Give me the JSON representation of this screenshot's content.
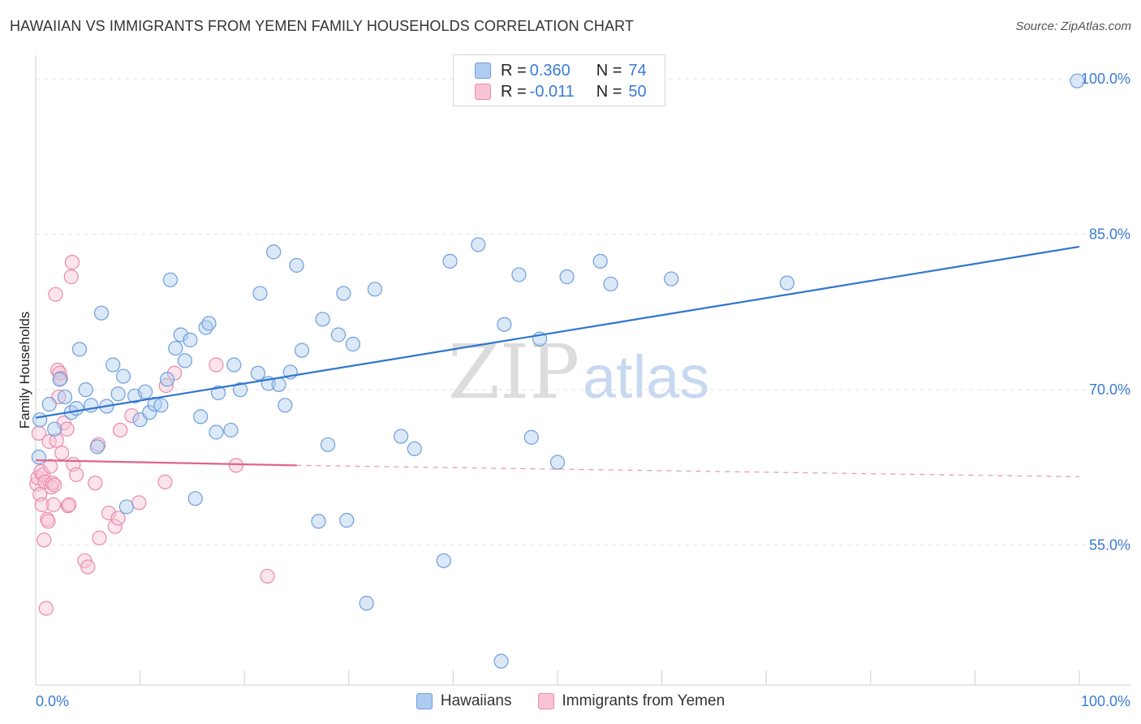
{
  "title": "HAWAIIAN VS IMMIGRANTS FROM YEMEN FAMILY HOUSEHOLDS CORRELATION CHART",
  "source": "Source: ZipAtlas.com",
  "watermark": {
    "part1": "ZIP",
    "part2": "atlas"
  },
  "legend_top": [
    {
      "r_label": "R =",
      "r_value": "0.360",
      "n_label": "N =",
      "n_value": "74",
      "color": "#aecbf0",
      "border": "#6f9fdc"
    },
    {
      "r_label": "R =",
      "r_value": "-0.011",
      "n_label": "N =",
      "n_value": "50",
      "color": "#f8c4d4",
      "border": "#e98aa9"
    }
  ],
  "legend_bottom": [
    {
      "label": "Hawaiians",
      "color": "#aecbf0",
      "border": "#6f9fdc"
    },
    {
      "label": "Immigrants from Yemen",
      "color": "#f8c4d4",
      "border": "#e98aa9"
    }
  ],
  "chart_data": {
    "type": "scatter",
    "title": "HAWAIIAN VS IMMIGRANTS FROM YEMEN FAMILY HOUSEHOLDS CORRELATION CHART",
    "xlabel": "",
    "ylabel": "Family Households",
    "xlim": [
      0,
      100
    ],
    "ylim": [
      41.5,
      101.5
    ],
    "x_tick_labels": [
      {
        "value": 0,
        "label": "0.0%"
      },
      {
        "value": 100,
        "label": "100.0%"
      }
    ],
    "y_tick_labels": [
      {
        "value": 55,
        "label": "55.0%"
      },
      {
        "value": 70,
        "label": "70.0%"
      },
      {
        "value": 85,
        "label": "85.0%"
      },
      {
        "value": 100,
        "label": "100.0%"
      }
    ],
    "grid": "horizontal dashed at y tick values",
    "legend_position": "top-center",
    "colors": {
      "hawaiians": "#6f9fdc",
      "hawaiians_line": "#2f74d0",
      "yemen": "#e98aa9",
      "yemen_line": "#e0648d"
    },
    "series": [
      {
        "name": "Hawaiians",
        "r": 0.36,
        "n": 74,
        "trend": {
          "x": [
            0,
            100
          ],
          "y": [
            67.3,
            83.8
          ],
          "style": "solid"
        },
        "points": [
          [
            0.3,
            63.5
          ],
          [
            0.4,
            67.1
          ],
          [
            1.3,
            68.6
          ],
          [
            1.8,
            66.2
          ],
          [
            2.3,
            71.0
          ],
          [
            2.8,
            69.3
          ],
          [
            3.4,
            67.8
          ],
          [
            3.9,
            68.2
          ],
          [
            4.2,
            73.9
          ],
          [
            4.8,
            70.0
          ],
          [
            5.3,
            68.5
          ],
          [
            5.9,
            64.5
          ],
          [
            6.3,
            77.4
          ],
          [
            6.8,
            68.4
          ],
          [
            7.4,
            72.4
          ],
          [
            7.9,
            69.6
          ],
          [
            8.4,
            71.3
          ],
          [
            8.7,
            58.7
          ],
          [
            9.5,
            69.4
          ],
          [
            10.0,
            67.1
          ],
          [
            10.5,
            69.8
          ],
          [
            10.9,
            67.8
          ],
          [
            11.4,
            68.6
          ],
          [
            12.0,
            68.5
          ],
          [
            12.6,
            71.0
          ],
          [
            12.9,
            80.6
          ],
          [
            13.4,
            74.0
          ],
          [
            13.9,
            75.3
          ],
          [
            14.3,
            72.8
          ],
          [
            14.8,
            74.8
          ],
          [
            15.3,
            59.5
          ],
          [
            15.8,
            67.4
          ],
          [
            16.3,
            76.0
          ],
          [
            16.6,
            76.4
          ],
          [
            17.3,
            65.9
          ],
          [
            17.5,
            69.7
          ],
          [
            18.7,
            66.1
          ],
          [
            19.0,
            72.4
          ],
          [
            19.6,
            70.0
          ],
          [
            21.3,
            71.6
          ],
          [
            21.5,
            79.3
          ],
          [
            22.3,
            70.6
          ],
          [
            22.8,
            83.3
          ],
          [
            23.3,
            70.5
          ],
          [
            23.9,
            68.5
          ],
          [
            24.4,
            71.7
          ],
          [
            25.0,
            82.0
          ],
          [
            25.5,
            73.8
          ],
          [
            27.1,
            57.3
          ],
          [
            27.5,
            76.8
          ],
          [
            28.0,
            64.7
          ],
          [
            29.0,
            75.3
          ],
          [
            29.5,
            79.3
          ],
          [
            29.8,
            57.4
          ],
          [
            30.4,
            74.4
          ],
          [
            31.7,
            49.4
          ],
          [
            32.5,
            79.7
          ],
          [
            35.0,
            65.5
          ],
          [
            36.3,
            64.3
          ],
          [
            39.1,
            53.5
          ],
          [
            39.7,
            82.4
          ],
          [
            42.4,
            84.0
          ],
          [
            44.6,
            43.8
          ],
          [
            44.9,
            76.3
          ],
          [
            46.3,
            81.1
          ],
          [
            47.5,
            65.4
          ],
          [
            48.3,
            74.9
          ],
          [
            50.0,
            63.0
          ],
          [
            50.9,
            80.9
          ],
          [
            54.1,
            82.4
          ],
          [
            55.1,
            80.2
          ],
          [
            60.9,
            80.7
          ],
          [
            72.0,
            80.3
          ],
          [
            99.8,
            99.8
          ]
        ]
      },
      {
        "name": "Immigrants from Yemen",
        "r": -0.011,
        "n": 50,
        "trend": {
          "x": [
            0,
            25,
            100
          ],
          "y": [
            63.2,
            62.7,
            61.6
          ],
          "style": "solid to 25, dashed after"
        },
        "points": [
          [
            0.1,
            60.9
          ],
          [
            0.2,
            61.5
          ],
          [
            0.3,
            65.8
          ],
          [
            0.4,
            59.9
          ],
          [
            0.5,
            62.1
          ],
          [
            0.6,
            58.9
          ],
          [
            0.7,
            61.8
          ],
          [
            0.8,
            55.5
          ],
          [
            0.9,
            61.1
          ],
          [
            1.0,
            48.9
          ],
          [
            1.1,
            57.5
          ],
          [
            1.2,
            57.3
          ],
          [
            1.3,
            65.0
          ],
          [
            1.4,
            62.6
          ],
          [
            1.5,
            60.6
          ],
          [
            1.6,
            61.0
          ],
          [
            1.7,
            58.9
          ],
          [
            1.8,
            60.8
          ],
          [
            1.9,
            79.2
          ],
          [
            2.0,
            65.1
          ],
          [
            2.1,
            71.9
          ],
          [
            2.2,
            69.3
          ],
          [
            2.3,
            71.6
          ],
          [
            2.4,
            71.1
          ],
          [
            2.5,
            63.9
          ],
          [
            2.7,
            66.8
          ],
          [
            3.0,
            66.2
          ],
          [
            3.1,
            58.8
          ],
          [
            3.2,
            58.9
          ],
          [
            3.4,
            80.9
          ],
          [
            3.5,
            82.3
          ],
          [
            3.6,
            62.8
          ],
          [
            3.9,
            61.8
          ],
          [
            4.7,
            53.5
          ],
          [
            5.0,
            52.9
          ],
          [
            5.7,
            61.0
          ],
          [
            6.0,
            64.7
          ],
          [
            6.1,
            55.7
          ],
          [
            7.0,
            58.1
          ],
          [
            7.6,
            56.8
          ],
          [
            7.9,
            57.6
          ],
          [
            8.1,
            66.1
          ],
          [
            9.2,
            67.5
          ],
          [
            9.9,
            59.1
          ],
          [
            12.4,
            61.1
          ],
          [
            12.5,
            70.4
          ],
          [
            13.3,
            71.6
          ],
          [
            17.3,
            72.4
          ],
          [
            19.2,
            62.7
          ],
          [
            22.2,
            52.0
          ]
        ]
      }
    ]
  }
}
